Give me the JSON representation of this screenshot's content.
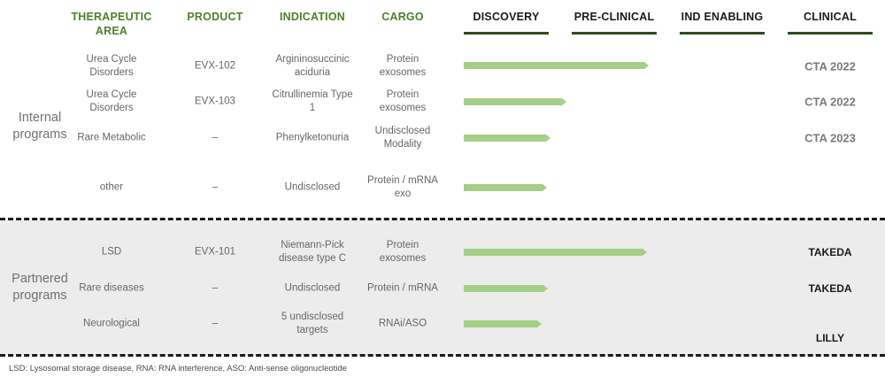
{
  "headers": {
    "therapeutic_area": "THERAPEUTIC AREA",
    "product": "PRODUCT",
    "indication": "INDICATION",
    "cargo": "CARGO",
    "stages": [
      "DISCOVERY",
      "PRE-CLINICAL",
      "IND ENABLING",
      "CLINICAL"
    ]
  },
  "groups": {
    "internal": "Internal programs",
    "partnered": "Partnered programs"
  },
  "internal_rows": [
    {
      "area": "Urea Cycle Disorders",
      "product": "EVX-102",
      "indication": "Argininosuccinic aciduria",
      "cargo": "Protein exosomes",
      "progress": 0.452,
      "status": "CTA 2022"
    },
    {
      "area": "Urea Cycle Disorders",
      "product": "EVX-103",
      "indication": "Citrullinemia Type 1",
      "cargo": "Protein exosomes",
      "progress": 0.252,
      "status": "CTA 2022"
    },
    {
      "area": "Rare Metabolic",
      "product": "–",
      "indication": "Phenylketonuria",
      "cargo": "Undisclosed Modality",
      "progress": 0.213,
      "status": "CTA 2023"
    },
    {
      "area": "other",
      "product": "–",
      "indication": "Undisclosed",
      "cargo": "Protein / mRNA exo",
      "progress": 0.203,
      "status": ""
    }
  ],
  "partnered_rows": [
    {
      "area": "LSD",
      "product": "EVX-101",
      "indication": "Niemann-Pick disease type C",
      "cargo": "Protein exosomes",
      "progress": 0.447,
      "status": "TAKEDA"
    },
    {
      "area": "Rare diseases",
      "product": "–",
      "indication": "Undisclosed",
      "cargo": "Protein / mRNA",
      "progress": 0.205,
      "status": "TAKEDA"
    },
    {
      "area": "Neurological",
      "product": "–",
      "indication": "5 undisclosed targets",
      "cargo": "RNAi/ASO",
      "progress": 0.19,
      "status": "LILLY"
    }
  ],
  "footnote": "LSD: Lysosomal storage disease, RNA: RNA interference, ASO: Anti-sense oligonucleotide",
  "colors": {
    "header_green": "#4f7f2a",
    "stage_line": "#2e4d1c",
    "bar": "#a4cf87",
    "partner_background": "#ececec"
  }
}
